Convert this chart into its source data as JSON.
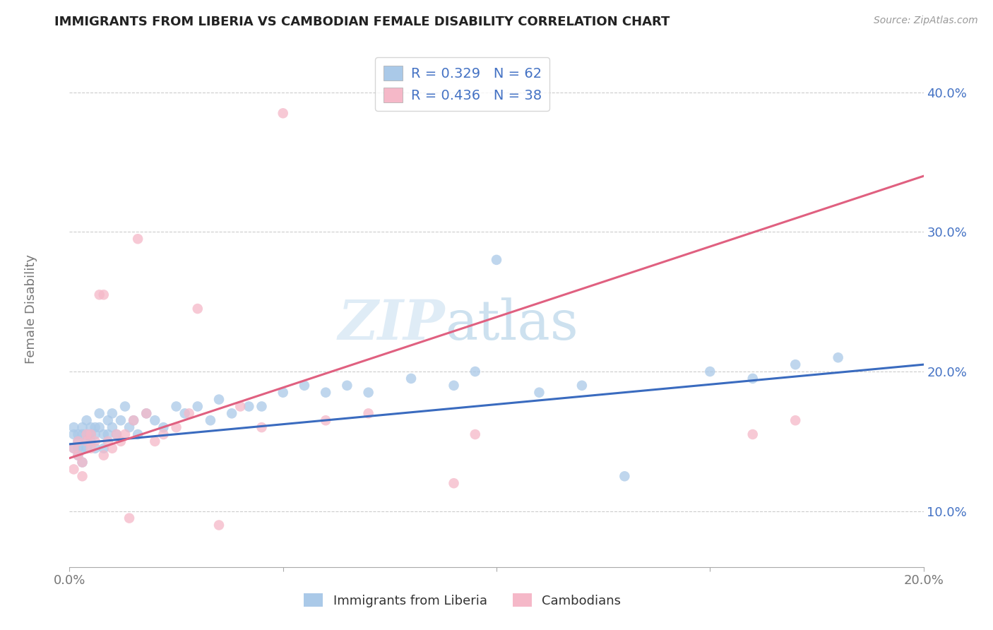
{
  "title": "IMMIGRANTS FROM LIBERIA VS CAMBODIAN FEMALE DISABILITY CORRELATION CHART",
  "source": "Source: ZipAtlas.com",
  "ylabel": "Female Disability",
  "xlabel": "",
  "xlim": [
    0.0,
    0.2
  ],
  "ylim": [
    0.06,
    0.43
  ],
  "xticks": [
    0.0,
    0.05,
    0.1,
    0.15,
    0.2
  ],
  "xticklabels": [
    "0.0%",
    "",
    "",
    "",
    "20.0%"
  ],
  "yticks": [
    0.1,
    0.2,
    0.3,
    0.4
  ],
  "yticklabels": [
    "10.0%",
    "20.0%",
    "30.0%",
    "40.0%"
  ],
  "blue_color": "#aac9e8",
  "pink_color": "#f5b8c8",
  "blue_line_color": "#3a6bbf",
  "pink_line_color": "#e06080",
  "watermark_zip": "ZIP",
  "watermark_atlas": "atlas",
  "blue_dots_x": [
    0.001,
    0.001,
    0.001,
    0.002,
    0.002,
    0.002,
    0.002,
    0.003,
    0.003,
    0.003,
    0.003,
    0.004,
    0.004,
    0.004,
    0.004,
    0.005,
    0.005,
    0.005,
    0.006,
    0.006,
    0.006,
    0.007,
    0.007,
    0.008,
    0.008,
    0.009,
    0.009,
    0.01,
    0.01,
    0.011,
    0.012,
    0.013,
    0.014,
    0.015,
    0.016,
    0.018,
    0.02,
    0.022,
    0.025,
    0.027,
    0.03,
    0.033,
    0.035,
    0.038,
    0.042,
    0.045,
    0.05,
    0.055,
    0.06,
    0.065,
    0.07,
    0.08,
    0.09,
    0.095,
    0.1,
    0.11,
    0.12,
    0.13,
    0.15,
    0.16,
    0.17,
    0.18
  ],
  "blue_dots_y": [
    0.155,
    0.16,
    0.145,
    0.155,
    0.145,
    0.15,
    0.14,
    0.16,
    0.155,
    0.145,
    0.135,
    0.155,
    0.15,
    0.165,
    0.145,
    0.16,
    0.15,
    0.155,
    0.16,
    0.155,
    0.145,
    0.17,
    0.16,
    0.155,
    0.145,
    0.165,
    0.155,
    0.17,
    0.16,
    0.155,
    0.165,
    0.175,
    0.16,
    0.165,
    0.155,
    0.17,
    0.165,
    0.16,
    0.175,
    0.17,
    0.175,
    0.165,
    0.18,
    0.17,
    0.175,
    0.175,
    0.185,
    0.19,
    0.185,
    0.19,
    0.185,
    0.195,
    0.19,
    0.2,
    0.28,
    0.185,
    0.19,
    0.125,
    0.2,
    0.195,
    0.205,
    0.21
  ],
  "pink_dots_x": [
    0.001,
    0.001,
    0.002,
    0.002,
    0.003,
    0.003,
    0.004,
    0.004,
    0.005,
    0.005,
    0.006,
    0.007,
    0.008,
    0.008,
    0.009,
    0.01,
    0.011,
    0.012,
    0.013,
    0.014,
    0.015,
    0.016,
    0.018,
    0.02,
    0.022,
    0.025,
    0.028,
    0.03,
    0.035,
    0.04,
    0.045,
    0.05,
    0.06,
    0.07,
    0.09,
    0.095,
    0.16,
    0.17
  ],
  "pink_dots_y": [
    0.145,
    0.13,
    0.15,
    0.14,
    0.135,
    0.125,
    0.155,
    0.15,
    0.155,
    0.145,
    0.15,
    0.255,
    0.14,
    0.255,
    0.15,
    0.145,
    0.155,
    0.15,
    0.155,
    0.095,
    0.165,
    0.295,
    0.17,
    0.15,
    0.155,
    0.16,
    0.17,
    0.245,
    0.09,
    0.175,
    0.16,
    0.385,
    0.165,
    0.17,
    0.12,
    0.155,
    0.155,
    0.165
  ],
  "blue_line_x0": 0.0,
  "blue_line_y0": 0.148,
  "blue_line_x1": 0.2,
  "blue_line_y1": 0.205,
  "pink_line_x0": 0.0,
  "pink_line_y0": 0.138,
  "pink_line_x1": 0.2,
  "pink_line_y1": 0.34
}
